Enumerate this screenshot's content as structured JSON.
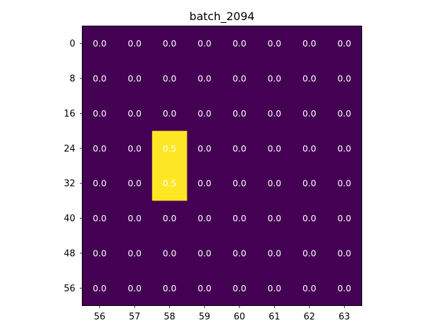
{
  "chart_data": {
    "type": "heatmap",
    "title": "batch_2094",
    "xlabel": "",
    "ylabel": "",
    "x_categories": [
      "56",
      "57",
      "58",
      "59",
      "60",
      "61",
      "62",
      "63"
    ],
    "y_categories": [
      "0",
      "8",
      "16",
      "24",
      "32",
      "40",
      "48",
      "56"
    ],
    "values": [
      [
        0.0,
        0.0,
        0.0,
        0.0,
        0.0,
        0.0,
        0.0,
        0.0
      ],
      [
        0.0,
        0.0,
        0.0,
        0.0,
        0.0,
        0.0,
        0.0,
        0.0
      ],
      [
        0.0,
        0.0,
        0.0,
        0.0,
        0.0,
        0.0,
        0.0,
        0.0
      ],
      [
        0.0,
        0.0,
        0.5,
        0.0,
        0.0,
        0.0,
        0.0,
        0.0
      ],
      [
        0.0,
        0.0,
        0.5,
        0.0,
        0.0,
        0.0,
        0.0,
        0.0
      ],
      [
        0.0,
        0.0,
        0.0,
        0.0,
        0.0,
        0.0,
        0.0,
        0.0
      ],
      [
        0.0,
        0.0,
        0.0,
        0.0,
        0.0,
        0.0,
        0.0,
        0.0
      ],
      [
        0.0,
        0.0,
        0.0,
        0.0,
        0.0,
        0.0,
        0.0,
        0.0
      ]
    ],
    "value_range": [
      0.0,
      0.5
    ],
    "colormap": "viridis",
    "low_color": "#440154",
    "high_color": "#fde725",
    "annotation_low_text_color": "#ffffff",
    "annotation_high_text_color": "#ffffff",
    "legend": "none",
    "grid": false
  }
}
